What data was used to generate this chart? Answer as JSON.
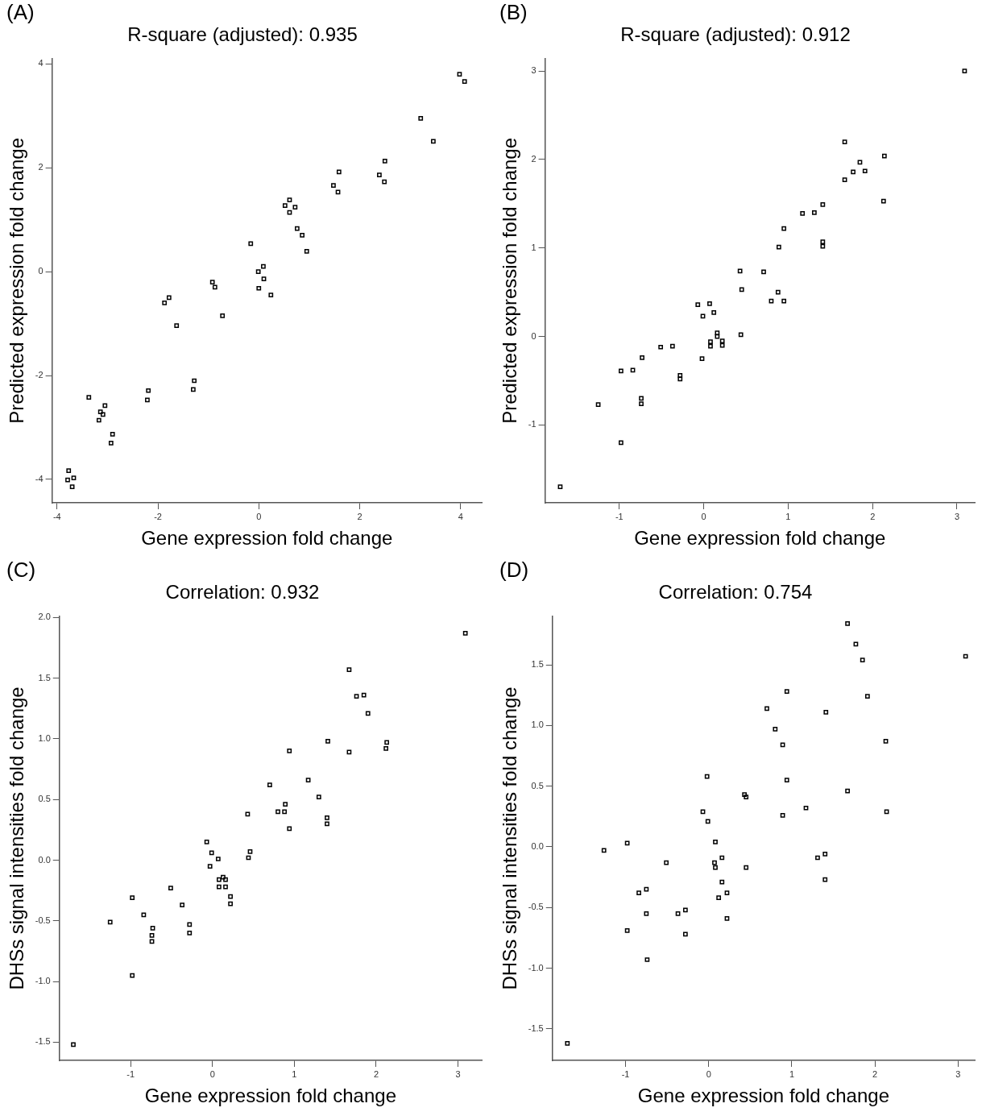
{
  "chart_data": [
    {
      "type": "scatter",
      "title": "R-square (adjusted): 0.935",
      "annotations": [
        "(A)"
      ],
      "xlabel": "Gene expression fold change",
      "ylabel": "Predicted expression fold change",
      "marker": "square",
      "grid": false,
      "legend": false,
      "xlim": [
        -4.1,
        4.42
      ],
      "ylim": [
        -4.45,
        4.1
      ],
      "xticks": [
        -4,
        -2,
        0,
        2,
        4
      ],
      "yticks": [
        -4,
        -2,
        0,
        2,
        4
      ],
      "series": [
        {
          "color": "#000000",
          "x": [
            3.98,
            4.08,
            3.21,
            3.46,
            2.5,
            2.39,
            2.49,
            1.59,
            1.48,
            1.57,
            0.61,
            0.52,
            0.72,
            0.61,
            0.76,
            0.86,
            0.95,
            -0.16,
            -0.01,
            0.09,
            0.1,
            0.0,
            0.24,
            -0.92,
            -0.87,
            -0.72,
            -1.78,
            -1.87,
            -1.63,
            -1.28,
            -1.3,
            -2.19,
            -2.21,
            -3.37,
            -3.05,
            -3.14,
            -3.09,
            -3.17,
            -2.9,
            -2.93,
            -3.77,
            -3.79,
            -3.67,
            -3.7
          ],
          "values": [
            3.8,
            3.66,
            2.95,
            2.51,
            2.13,
            1.86,
            1.73,
            1.92,
            1.66,
            1.53,
            1.38,
            1.27,
            1.24,
            1.14,
            0.83,
            0.7,
            0.39,
            0.54,
            0.0,
            0.1,
            -0.14,
            -0.32,
            -0.45,
            -0.2,
            -0.3,
            -0.85,
            -0.5,
            -0.6,
            -1.04,
            -2.1,
            -2.27,
            -2.29,
            -2.47,
            -2.42,
            -2.58,
            -2.7,
            -2.75,
            -2.86,
            -3.13,
            -3.3,
            -3.83,
            -4.01,
            -3.97,
            -4.14
          ]
        }
      ]
    },
    {
      "type": "scatter",
      "title": "R-square (adjusted): 0.912",
      "annotations": [
        "(B)"
      ],
      "xlabel": "Gene expression fold change",
      "ylabel": "Predicted expression fold change",
      "marker": "square",
      "grid": false,
      "legend": false,
      "xlim": [
        -1.88,
        3.21
      ],
      "ylim": [
        -1.88,
        3.14
      ],
      "xticks": [
        -1,
        0,
        1,
        2,
        3
      ],
      "yticks": [
        -1,
        0,
        1,
        2,
        3
      ],
      "series": [
        {
          "color": "#000000",
          "x": [
            3.09,
            1.67,
            2.14,
            1.85,
            1.77,
            1.91,
            1.67,
            2.13,
            1.41,
            1.31,
            1.17,
            0.95,
            0.89,
            1.41,
            1.41,
            0.43,
            0.71,
            0.45,
            0.88,
            0.8,
            0.95,
            -0.07,
            0.07,
            -0.01,
            0.12,
            0.16,
            0.16,
            0.44,
            0.08,
            0.08,
            0.22,
            0.22,
            -0.02,
            -0.37,
            -0.51,
            -0.73,
            -0.84,
            -0.98,
            -0.28,
            -0.28,
            -0.74,
            -0.74,
            -1.25,
            -0.98,
            -1.7
          ],
          "values": [
            3.0,
            2.2,
            2.04,
            1.97,
            1.86,
            1.87,
            1.77,
            1.53,
            1.49,
            1.4,
            1.39,
            1.22,
            1.01,
            1.07,
            1.02,
            0.74,
            0.73,
            0.53,
            0.5,
            0.4,
            0.4,
            0.36,
            0.37,
            0.23,
            0.27,
            0.04,
            0.0,
            0.02,
            -0.06,
            -0.11,
            -0.05,
            -0.1,
            -0.25,
            -0.11,
            -0.12,
            -0.24,
            -0.38,
            -0.39,
            -0.44,
            -0.48,
            -0.7,
            -0.76,
            -0.77,
            -1.2,
            -1.7
          ]
        }
      ]
    },
    {
      "type": "scatter",
      "title": "Correlation: 0.932",
      "annotations": [
        "(C)"
      ],
      "xlabel": "Gene expression fold change",
      "ylabel": "DHSs signal intensities fold change",
      "marker": "square",
      "grid": false,
      "legend": false,
      "xlim": [
        -1.87,
        3.29
      ],
      "ylim": [
        -1.65,
        2.01
      ],
      "xticks": [
        -1,
        0,
        1,
        2,
        3
      ],
      "yticks": [
        {
          "value": -1.5,
          "label": "-1.5"
        },
        {
          "value": -1,
          "label": "-1.0"
        },
        {
          "value": -0.5,
          "label": "-0.5"
        },
        {
          "value": 0,
          "label": "0.0"
        },
        {
          "value": 0.5,
          "label": "0.5"
        },
        {
          "value": 1,
          "label": "1.0"
        },
        {
          "value": 1.5,
          "label": "1.5"
        },
        {
          "value": 2,
          "label": "2.0"
        }
      ],
      "series": [
        {
          "color": "#000000",
          "x": [
            3.09,
            1.67,
            1.76,
            1.85,
            1.9,
            1.41,
            0.94,
            1.67,
            2.13,
            2.12,
            0.7,
            1.17,
            1.3,
            0.89,
            0.88,
            0.8,
            1.4,
            1.4,
            0.94,
            0.43,
            0.46,
            0.44,
            -0.07,
            -0.01,
            0.07,
            -0.03,
            0.08,
            0.08,
            0.13,
            0.16,
            0.16,
            0.22,
            0.22,
            -0.51,
            -0.37,
            -0.28,
            -0.28,
            -0.98,
            -0.84,
            -1.25,
            -0.73,
            -0.74,
            -0.74,
            -0.98,
            -1.7
          ],
          "values": [
            1.87,
            1.57,
            1.35,
            1.36,
            1.21,
            0.98,
            0.9,
            0.89,
            0.97,
            0.92,
            0.62,
            0.66,
            0.52,
            0.46,
            0.4,
            0.4,
            0.35,
            0.3,
            0.26,
            0.38,
            0.07,
            0.02,
            0.15,
            0.06,
            0.01,
            -0.05,
            -0.16,
            -0.22,
            -0.14,
            -0.16,
            -0.22,
            -0.3,
            -0.36,
            -0.23,
            -0.37,
            -0.53,
            -0.6,
            -0.31,
            -0.45,
            -0.51,
            -0.56,
            -0.62,
            -0.67,
            -0.95,
            -1.52
          ]
        }
      ]
    },
    {
      "type": "scatter",
      "title": "Correlation: 0.754",
      "annotations": [
        "(D)"
      ],
      "xlabel": "Gene expression fold change",
      "ylabel": "DHSs signal intensities fold change",
      "marker": "square",
      "grid": false,
      "legend": false,
      "xlim": [
        -1.88,
        3.2
      ],
      "ylim": [
        -1.76,
        1.9
      ],
      "xticks": [
        -1,
        0,
        1,
        2,
        3
      ],
      "yticks": [
        {
          "value": -1.5,
          "label": "-1.5"
        },
        {
          "value": -1,
          "label": "-1.0"
        },
        {
          "value": -0.5,
          "label": "-0.5"
        },
        {
          "value": 0,
          "label": "0.0"
        },
        {
          "value": 0.5,
          "label": "0.5"
        },
        {
          "value": 1,
          "label": "1.0"
        },
        {
          "value": 1.5,
          "label": "1.5"
        }
      ],
      "series": [
        {
          "color": "#000000",
          "x": [
            1.67,
            1.77,
            1.85,
            3.09,
            0.94,
            1.91,
            0.7,
            1.41,
            0.8,
            0.89,
            2.13,
            -0.02,
            0.94,
            0.43,
            0.45,
            1.67,
            1.17,
            -0.07,
            0.89,
            2.14,
            -0.01,
            0.08,
            -0.98,
            -1.26,
            -0.51,
            0.07,
            0.08,
            0.16,
            0.45,
            1.31,
            1.4,
            1.4,
            0.16,
            0.22,
            0.12,
            -0.75,
            -0.84,
            -0.75,
            -0.37,
            -0.28,
            0.22,
            -0.98,
            -0.28,
            -0.74,
            -1.7
          ],
          "values": [
            1.84,
            1.67,
            1.54,
            1.57,
            1.28,
            1.24,
            1.14,
            1.11,
            0.97,
            0.84,
            0.87,
            0.58,
            0.55,
            0.43,
            0.41,
            0.46,
            0.32,
            0.29,
            0.26,
            0.29,
            0.21,
            0.04,
            0.03,
            -0.03,
            -0.13,
            -0.13,
            -0.17,
            -0.09,
            -0.17,
            -0.09,
            -0.06,
            -0.27,
            -0.29,
            -0.38,
            -0.42,
            -0.35,
            -0.38,
            -0.55,
            -0.55,
            -0.52,
            -0.59,
            -0.69,
            -0.72,
            -0.93,
            -1.62
          ]
        }
      ]
    }
  ]
}
